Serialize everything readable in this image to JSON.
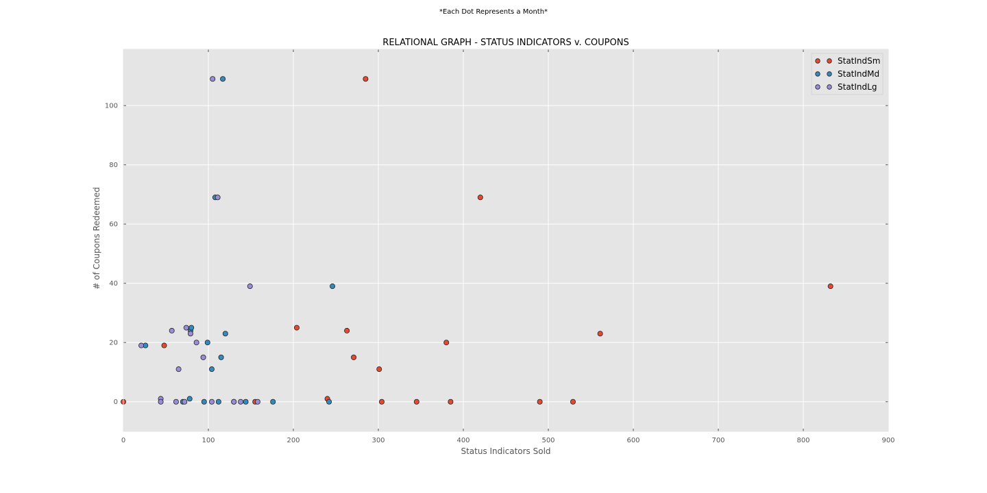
{
  "figure": {
    "suptitle": "*Each Dot Represents a Month*"
  },
  "chart_data": {
    "type": "scatter",
    "title": "RELATIONAL GRAPH - STATUS INDICATORS v. COUPONS",
    "xlabel": "Status Indicators Sold",
    "ylabel": "# of Coupons Redeemed",
    "xlim": [
      0,
      900
    ],
    "ylim": [
      -10,
      119
    ],
    "xticks": [
      0,
      100,
      200,
      300,
      400,
      500,
      600,
      700,
      800,
      900
    ],
    "yticks": [
      0,
      20,
      40,
      60,
      80,
      100
    ],
    "grid": true,
    "legend_position": "top-right",
    "background": "#e5e5e5",
    "series": [
      {
        "name": "StatIndSm",
        "color": "#e24a33",
        "points": [
          {
            "x": 0,
            "y": 0
          },
          {
            "x": 48,
            "y": 19
          },
          {
            "x": 155,
            "y": 0
          },
          {
            "x": 204,
            "y": 25
          },
          {
            "x": 240,
            "y": 1
          },
          {
            "x": 263,
            "y": 24
          },
          {
            "x": 271,
            "y": 15
          },
          {
            "x": 285,
            "y": 109
          },
          {
            "x": 301,
            "y": 11
          },
          {
            "x": 304,
            "y": 0
          },
          {
            "x": 345,
            "y": 0
          },
          {
            "x": 380,
            "y": 20
          },
          {
            "x": 385,
            "y": 0
          },
          {
            "x": 420,
            "y": 69
          },
          {
            "x": 490,
            "y": 0
          },
          {
            "x": 529,
            "y": 0
          },
          {
            "x": 561,
            "y": 23
          },
          {
            "x": 832,
            "y": 39
          }
        ]
      },
      {
        "name": "StatIndMd",
        "color": "#348abd",
        "points": [
          {
            "x": 26,
            "y": 19
          },
          {
            "x": 70,
            "y": 0
          },
          {
            "x": 78,
            "y": 1
          },
          {
            "x": 79,
            "y": 24
          },
          {
            "x": 80,
            "y": 25
          },
          {
            "x": 95,
            "y": 0
          },
          {
            "x": 99,
            "y": 20
          },
          {
            "x": 104,
            "y": 11
          },
          {
            "x": 108,
            "y": 69
          },
          {
            "x": 112,
            "y": 0
          },
          {
            "x": 115,
            "y": 15
          },
          {
            "x": 117,
            "y": 109
          },
          {
            "x": 120,
            "y": 23
          },
          {
            "x": 130,
            "y": 0
          },
          {
            "x": 144,
            "y": 0
          },
          {
            "x": 176,
            "y": 0
          },
          {
            "x": 242,
            "y": 0
          },
          {
            "x": 246,
            "y": 39
          }
        ]
      },
      {
        "name": "StatIndLg",
        "color": "#988ed5",
        "points": [
          {
            "x": 21,
            "y": 19
          },
          {
            "x": 44,
            "y": 1
          },
          {
            "x": 44,
            "y": 0
          },
          {
            "x": 57,
            "y": 24
          },
          {
            "x": 62,
            "y": 0
          },
          {
            "x": 65,
            "y": 11
          },
          {
            "x": 72,
            "y": 0
          },
          {
            "x": 74,
            "y": 25
          },
          {
            "x": 79,
            "y": 23
          },
          {
            "x": 86,
            "y": 20
          },
          {
            "x": 94,
            "y": 15
          },
          {
            "x": 104,
            "y": 0
          },
          {
            "x": 105,
            "y": 109
          },
          {
            "x": 111,
            "y": 69
          },
          {
            "x": 130,
            "y": 0
          },
          {
            "x": 138,
            "y": 0
          },
          {
            "x": 149,
            "y": 39
          },
          {
            "x": 158,
            "y": 0
          }
        ]
      }
    ]
  }
}
